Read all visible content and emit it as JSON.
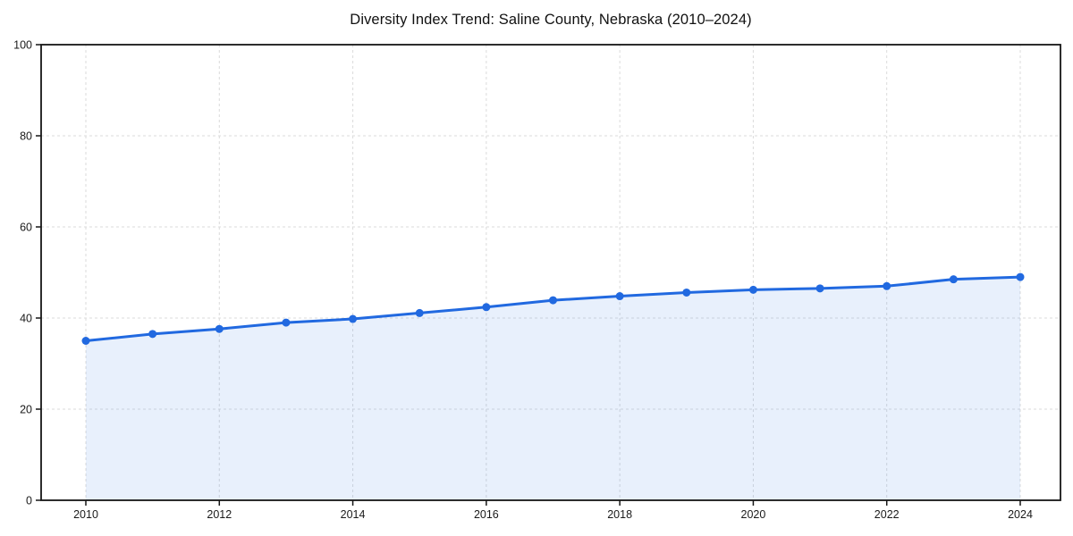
{
  "chart_data": {
    "type": "line",
    "title": "Diversity Index Trend: Saline County, Nebraska (2010–2024)",
    "x": [
      2010,
      2011,
      2012,
      2013,
      2014,
      2015,
      2016,
      2017,
      2018,
      2019,
      2020,
      2021,
      2022,
      2023,
      2024
    ],
    "series": [
      {
        "name": "Diversity Index",
        "values": [
          35.0,
          36.5,
          37.6,
          39.0,
          39.8,
          41.1,
          42.4,
          43.9,
          44.8,
          45.6,
          46.2,
          46.5,
          47.0,
          48.5,
          49.0
        ]
      }
    ],
    "xlabel": "",
    "ylabel": "",
    "xlim": [
      2010,
      2024
    ],
    "ylim": [
      0,
      100
    ],
    "xticks": [
      2010,
      2012,
      2014,
      2016,
      2018,
      2020,
      2022,
      2024
    ],
    "yticks": [
      0,
      20,
      40,
      60,
      80,
      100
    ],
    "grid": true,
    "grid_style": "dashed",
    "legend": false,
    "colors": {
      "line": "#2169e0",
      "marker": "#2169e0",
      "area_fill": "rgba(33,105,224,0.10)",
      "gridline": "#dbdbdb",
      "spine": "#161616",
      "tick_label": "#1a1a1a",
      "background": "#ffffff"
    },
    "marker": "circle",
    "marker_radius": 4.5,
    "line_width": 3
  }
}
